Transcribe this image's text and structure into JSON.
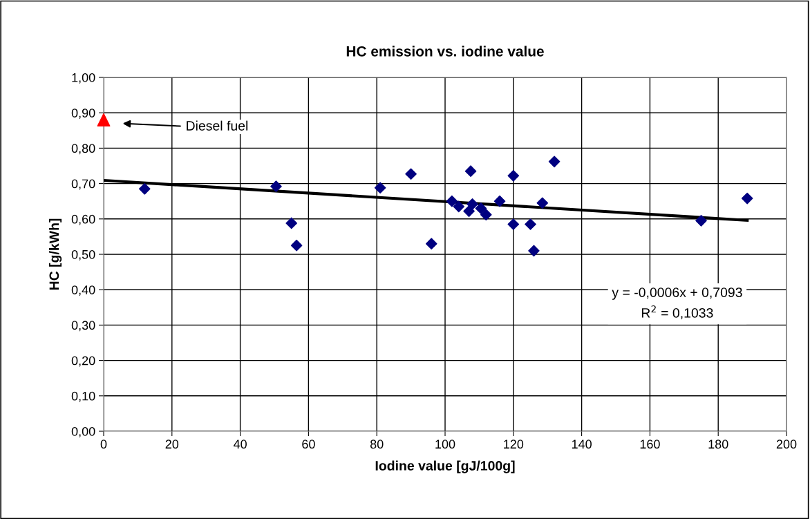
{
  "chart_data": {
    "type": "scatter",
    "title": "HC emission vs. iodine value",
    "xlabel": "Iodine value [gJ/100g]",
    "ylabel": "HC [g/kWh]",
    "xlim": [
      0,
      200
    ],
    "xticks": [
      0,
      20,
      40,
      60,
      80,
      100,
      120,
      140,
      160,
      180,
      200
    ],
    "ylim": [
      0,
      1
    ],
    "yticks": [
      {
        "value": 0,
        "label": "0,00"
      },
      {
        "value": 0.1,
        "label": "0,10"
      },
      {
        "value": 0.2,
        "label": "0,20"
      },
      {
        "value": 0.3,
        "label": "0,30"
      },
      {
        "value": 0.4,
        "label": "0,40"
      },
      {
        "value": 0.5,
        "label": "0,50"
      },
      {
        "value": 0.6,
        "label": "0,60"
      },
      {
        "value": 0.7,
        "label": "0,70"
      },
      {
        "value": 0.8,
        "label": "0,80"
      },
      {
        "value": 0.9,
        "label": "0,90"
      },
      {
        "value": 1,
        "label": "1,00"
      }
    ],
    "grid": true,
    "legend": false,
    "series": [
      {
        "marker": "diamond",
        "color": "#000080",
        "x": [
          12,
          50.5,
          55,
          56.5,
          81,
          90,
          96,
          102,
          104,
          107,
          107.5,
          108,
          110.5,
          112,
          116,
          120,
          120,
          125,
          126,
          128.5,
          132,
          175,
          188.5
        ],
        "values": [
          0.685,
          0.692,
          0.588,
          0.525,
          0.688,
          0.727,
          0.53,
          0.65,
          0.635,
          0.622,
          0.735,
          0.642,
          0.63,
          0.612,
          0.65,
          0.722,
          0.585,
          0.585,
          0.51,
          0.645,
          0.762,
          0.595,
          0.658
        ]
      },
      {
        "marker": "triangle",
        "color": "#ff0000",
        "x": [
          0
        ],
        "values": [
          0.88
        ]
      },
      {
        "type": "line",
        "color": "#000000",
        "x": [
          0,
          188.5
        ],
        "values": [
          0.709,
          0.596
        ]
      }
    ],
    "annotations": [
      "Diesel fuel",
      "y = -0,0006x + 0,7093\nR$^{2}$ = 0,1033"
    ]
  }
}
